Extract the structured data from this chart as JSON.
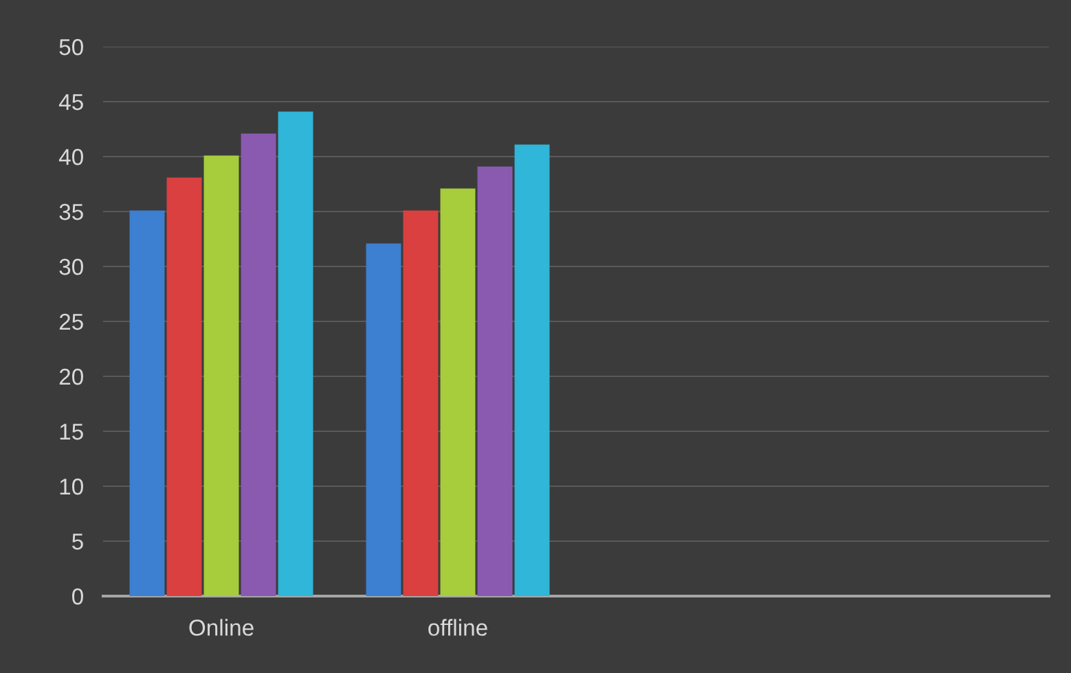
{
  "chart_data": {
    "type": "bar",
    "categories": [
      "Online",
      "offline",
      null,
      null
    ],
    "series": [
      {
        "color": "#3d7fd0",
        "values": [
          35,
          32,
          null,
          null
        ]
      },
      {
        "color": "#d9403f",
        "values": [
          38,
          35,
          null,
          null
        ]
      },
      {
        "color": "#a7cc3c",
        "values": [
          40,
          37,
          null,
          null
        ]
      },
      {
        "color": "#8a5ab0",
        "values": [
          42,
          39,
          null,
          null
        ]
      },
      {
        "color": "#2fb6d8",
        "values": [
          44,
          41,
          null,
          null
        ]
      }
    ],
    "ylim": [
      0,
      50
    ],
    "yticks": [
      0,
      5,
      10,
      15,
      20,
      25,
      30,
      35,
      40,
      45,
      50
    ],
    "grid": "y",
    "legend": false
  }
}
